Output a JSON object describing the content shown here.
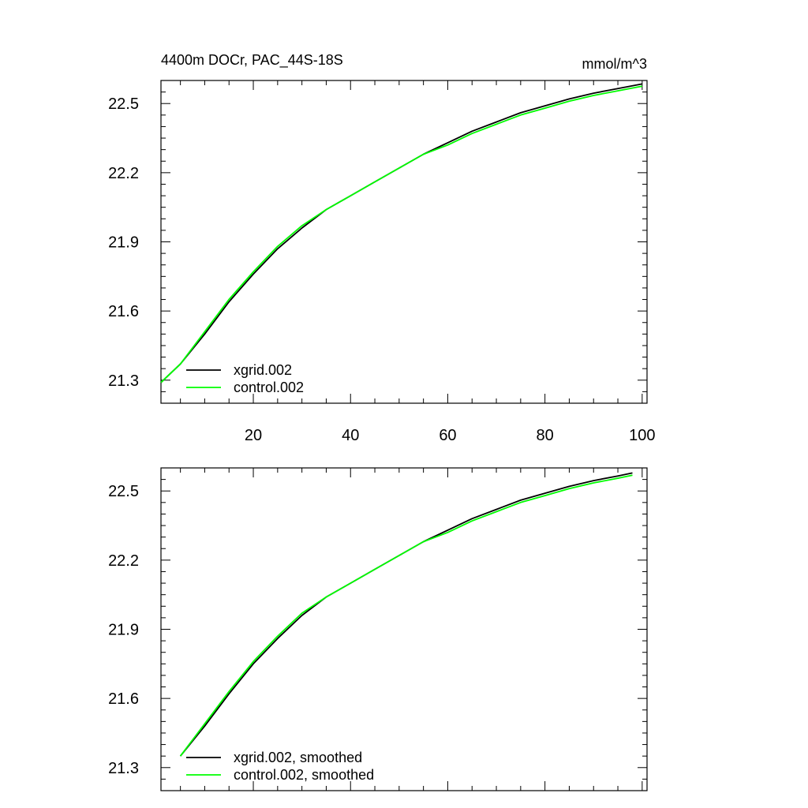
{
  "chart_data": [
    {
      "type": "line",
      "title": "4400m DOCr, PAC_44S-18S",
      "units": "mmol/m^3",
      "xlim": [
        1,
        101
      ],
      "ylim": [
        21.2,
        22.6
      ],
      "xticks": [
        20,
        40,
        60,
        80,
        100
      ],
      "xtick_labels": [
        "20",
        "40",
        "60",
        "80",
        "100"
      ],
      "yticks": [
        21.3,
        21.6,
        21.9,
        22.2,
        22.5
      ],
      "ytick_labels": [
        "21.3",
        "21.6",
        "21.9",
        "22.2",
        "22.5"
      ],
      "legend_position": "bottom-left",
      "series": [
        {
          "name": "xgrid.002",
          "color": "#000000",
          "x": [
            1,
            5,
            10,
            15,
            20,
            25,
            30,
            35,
            40,
            45,
            50,
            55,
            60,
            65,
            70,
            75,
            80,
            85,
            90,
            95,
            100
          ],
          "y": [
            21.29,
            21.37,
            21.5,
            21.64,
            21.76,
            21.87,
            21.96,
            22.04,
            22.1,
            22.16,
            22.22,
            22.28,
            22.33,
            22.38,
            22.42,
            22.46,
            22.49,
            22.52,
            22.545,
            22.565,
            22.585
          ]
        },
        {
          "name": "control.002",
          "color": "#00ff00",
          "x": [
            1,
            5,
            10,
            15,
            20,
            25,
            30,
            35,
            40,
            45,
            50,
            55,
            60,
            65,
            70,
            75,
            80,
            85,
            90,
            95,
            100
          ],
          "y": [
            21.29,
            21.37,
            21.51,
            21.65,
            21.77,
            21.88,
            21.97,
            22.04,
            22.1,
            22.16,
            22.22,
            22.28,
            22.32,
            22.37,
            22.41,
            22.45,
            22.48,
            22.51,
            22.535,
            22.555,
            22.575
          ]
        }
      ]
    },
    {
      "type": "line",
      "xlim": [
        1,
        101
      ],
      "ylim": [
        21.2,
        22.6
      ],
      "xticks": [
        20,
        40,
        60,
        80,
        100
      ],
      "yticks": [
        21.3,
        21.6,
        21.9,
        22.2,
        22.5
      ],
      "ytick_labels": [
        "21.3",
        "21.6",
        "21.9",
        "22.2",
        "22.5"
      ],
      "legend_position": "bottom-left",
      "series": [
        {
          "name": "xgrid.002, smoothed",
          "color": "#000000",
          "x": [
            5,
            10,
            15,
            20,
            25,
            30,
            35,
            40,
            45,
            50,
            55,
            60,
            65,
            70,
            75,
            80,
            85,
            90,
            95,
            98
          ],
          "y": [
            21.35,
            21.48,
            21.62,
            21.75,
            21.86,
            21.96,
            22.04,
            22.1,
            22.16,
            22.22,
            22.28,
            22.33,
            22.38,
            22.42,
            22.46,
            22.49,
            22.52,
            22.545,
            22.565,
            22.578
          ]
        },
        {
          "name": "control.002, smoothed",
          "color": "#00ff00",
          "x": [
            5,
            10,
            15,
            20,
            25,
            30,
            35,
            40,
            45,
            50,
            55,
            60,
            65,
            70,
            75,
            80,
            85,
            90,
            95,
            98
          ],
          "y": [
            21.35,
            21.49,
            21.63,
            21.76,
            21.87,
            21.97,
            22.04,
            22.1,
            22.16,
            22.22,
            22.28,
            22.32,
            22.37,
            22.41,
            22.45,
            22.48,
            22.51,
            22.535,
            22.555,
            22.568
          ]
        }
      ]
    }
  ]
}
